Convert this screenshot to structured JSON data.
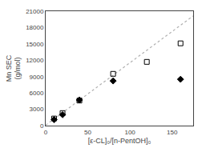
{
  "chart_data": {
    "type": "scatter",
    "xlabel": "[ε-CL]₀/[n-PentOH]₀",
    "ylabel": "Mn SEC\n(g/mol)",
    "xlim": [
      0,
      175
    ],
    "ylim": [
      0,
      21000
    ],
    "xticks": [
      0,
      50,
      100,
      150
    ],
    "yticks": [
      0,
      3000,
      6000,
      9000,
      12000,
      15000,
      18000,
      21000
    ],
    "grid": false,
    "series": [
      {
        "type": "line",
        "x": [
          0,
          175
        ],
        "values": [
          88,
          20138
        ],
        "color": "#b0b0b0",
        "line_style": "dotted"
      },
      {
        "type": "scatter",
        "x": [
          10,
          20,
          40,
          80,
          120,
          160
        ],
        "values": [
          1300,
          2300,
          4600,
          9500,
          11700,
          15100
        ],
        "color": "black",
        "marker": "square-open"
      },
      {
        "type": "scatter",
        "x": [
          10,
          20,
          40,
          80,
          160
        ],
        "values": [
          1100,
          2000,
          4700,
          8200,
          8500
        ],
        "color": "black",
        "marker": "diamond"
      }
    ]
  }
}
